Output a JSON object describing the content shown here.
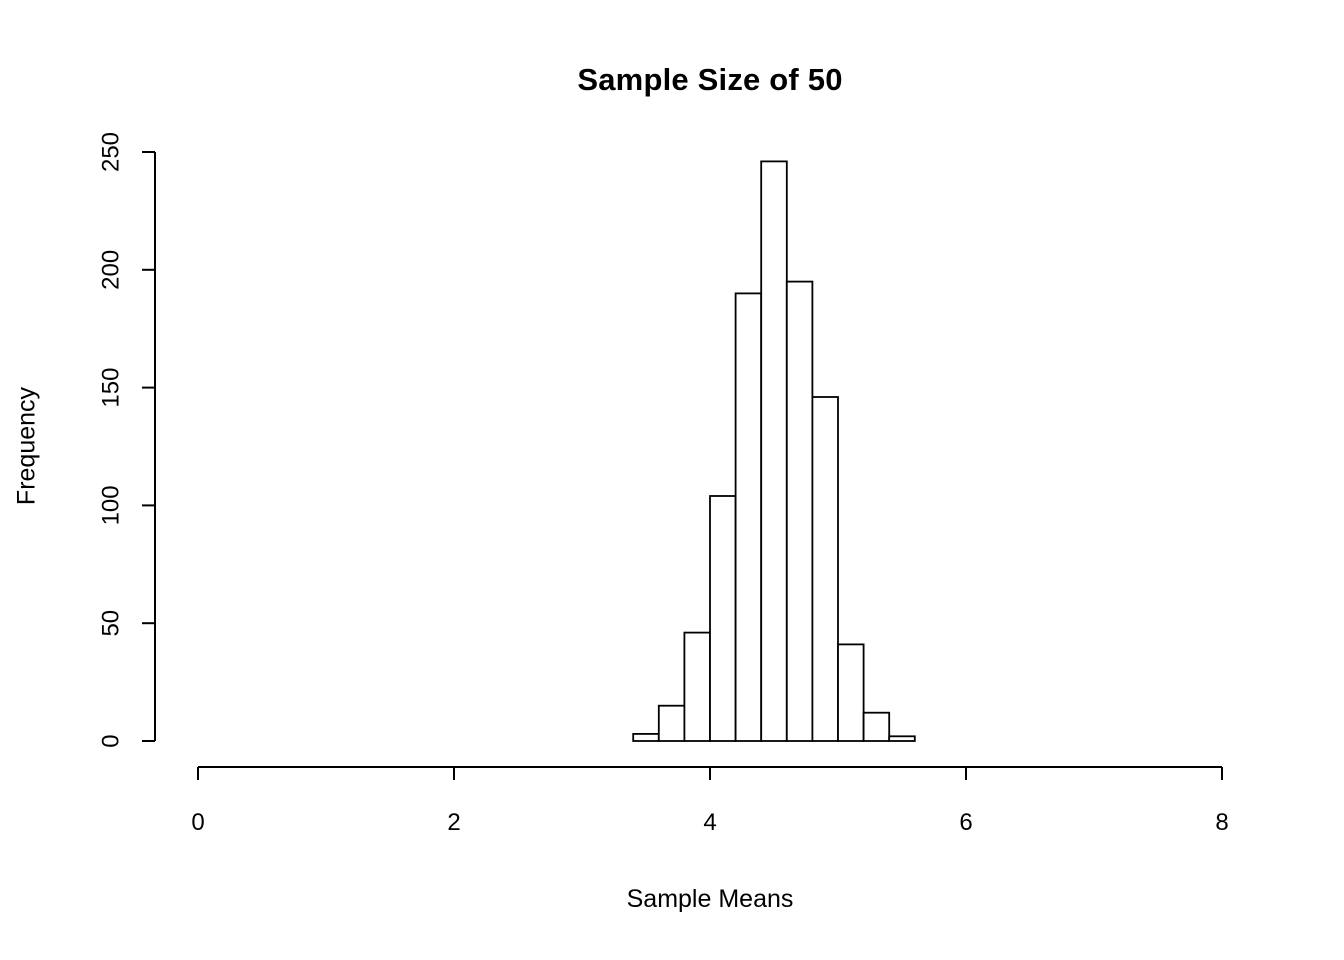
{
  "chart_data": {
    "type": "bar",
    "subtype": "histogram",
    "title": "Sample Size of 50",
    "xlabel": "Sample Means",
    "ylabel": "Frequency",
    "xlim": [
      0,
      8
    ],
    "ylim": [
      0,
      250
    ],
    "x_ticks": [
      0,
      2,
      4,
      6,
      8
    ],
    "y_ticks": [
      0,
      50,
      100,
      150,
      200,
      250
    ],
    "bin_start": 3.4,
    "bin_width": 0.2,
    "counts": [
      3,
      15,
      46,
      104,
      190,
      246,
      195,
      146,
      41,
      12,
      2
    ],
    "bar_fill": "#ffffff",
    "bar_stroke": "#000000",
    "axis_color": "#000000",
    "grid": false,
    "legend": false
  }
}
